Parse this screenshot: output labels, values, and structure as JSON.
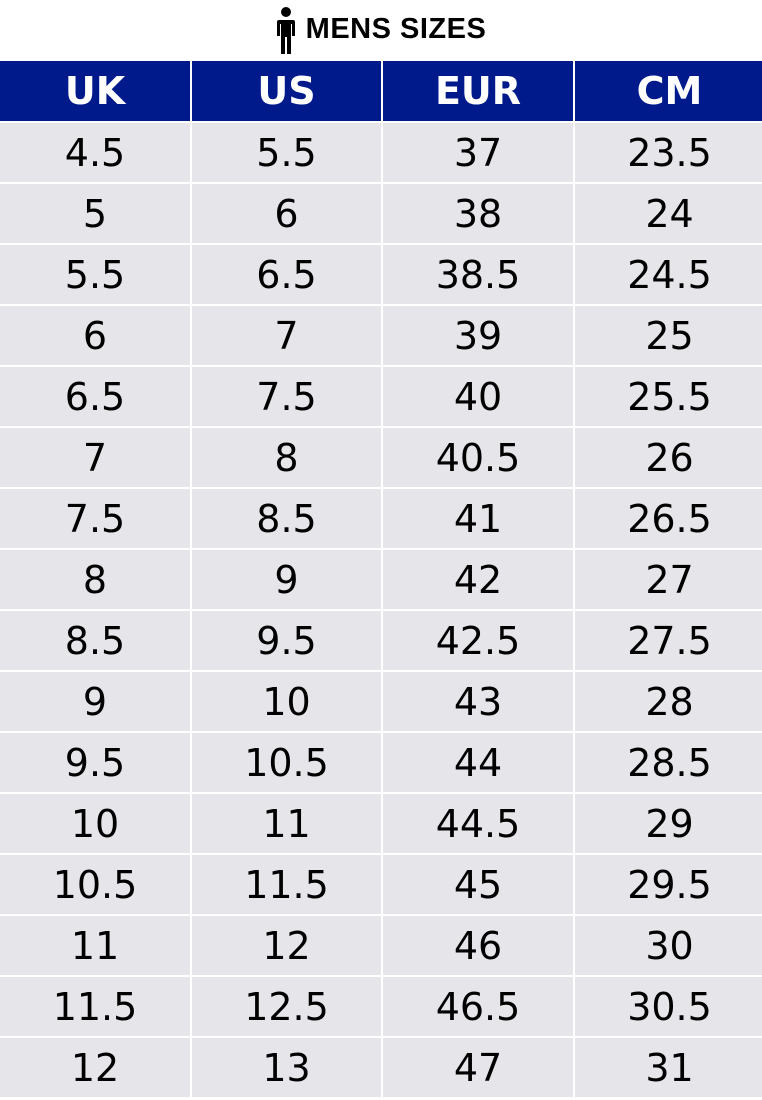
{
  "title": "MENS SIZES",
  "title_icon": "man-icon",
  "colors": {
    "header_bg": "#001a8c",
    "row_bg": "#e6e5ea",
    "header_text": "#ffffff"
  },
  "columns": [
    "UK",
    "US",
    "EUR",
    "CM"
  ],
  "rows": [
    [
      "4.5",
      "5.5",
      "37",
      "23.5"
    ],
    [
      "5",
      "6",
      "38",
      "24"
    ],
    [
      "5.5",
      "6.5",
      "38.5",
      "24.5"
    ],
    [
      "6",
      "7",
      "39",
      "25"
    ],
    [
      "6.5",
      "7.5",
      "40",
      "25.5"
    ],
    [
      "7",
      "8",
      "40.5",
      "26"
    ],
    [
      "7.5",
      "8.5",
      "41",
      "26.5"
    ],
    [
      "8",
      "9",
      "42",
      "27"
    ],
    [
      "8.5",
      "9.5",
      "42.5",
      "27.5"
    ],
    [
      "9",
      "10",
      "43",
      "28"
    ],
    [
      "9.5",
      "10.5",
      "44",
      "28.5"
    ],
    [
      "10",
      "11",
      "44.5",
      "29"
    ],
    [
      "10.5",
      "11.5",
      "45",
      "29.5"
    ],
    [
      "11",
      "12",
      "46",
      "30"
    ],
    [
      "11.5",
      "12.5",
      "46.5",
      "30.5"
    ],
    [
      "12",
      "13",
      "47",
      "31"
    ]
  ]
}
